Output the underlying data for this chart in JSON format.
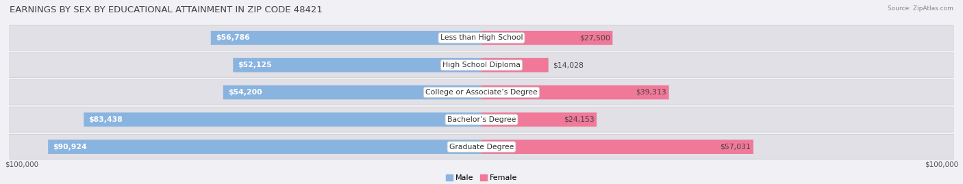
{
  "title": "EARNINGS BY SEX BY EDUCATIONAL ATTAINMENT IN ZIP CODE 48421",
  "source": "Source: ZipAtlas.com",
  "categories": [
    "Less than High School",
    "High School Diploma",
    "College or Associate’s Degree",
    "Bachelor’s Degree",
    "Graduate Degree"
  ],
  "male_values": [
    56786,
    52125,
    54200,
    83438,
    90924
  ],
  "female_values": [
    27500,
    14028,
    39313,
    24153,
    57031
  ],
  "male_color": "#8ab4e0",
  "female_color": "#f07898",
  "max_value": 100000,
  "male_label": "Male",
  "female_label": "Female",
  "x_tick_label": "$100,000",
  "title_color": "#444444",
  "title_fontsize": 9.5,
  "label_fontsize": 7.8,
  "category_fontsize": 7.8,
  "row_bg": "#e8e8ec",
  "fig_bg": "#f0f0f5"
}
